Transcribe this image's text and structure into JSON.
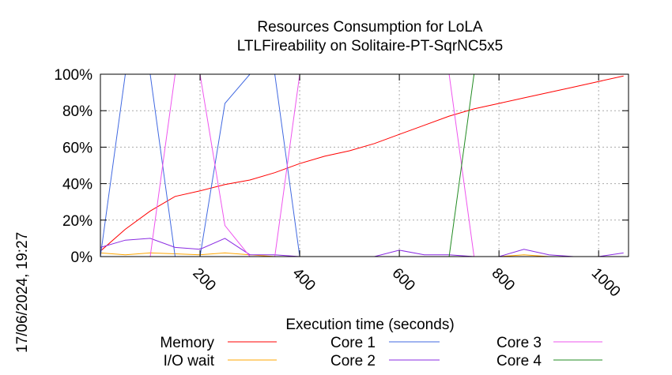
{
  "chart_data": {
    "type": "line",
    "title": "Resources Consumption for LoLA",
    "subtitle": "LTLFireability on Solitaire-PT-SqrNC5x5",
    "xlabel": "Execution time (seconds)",
    "ylabel": "",
    "side_label": "17/06/2024, 19:27",
    "xlim": [
      0,
      1060
    ],
    "ylim": [
      0,
      100
    ],
    "x_ticks": [
      200,
      400,
      600,
      800,
      1000
    ],
    "y_ticks": [
      0,
      20,
      40,
      60,
      80,
      100
    ],
    "y_tick_labels": [
      "0%",
      "20%",
      "40%",
      "60%",
      "80%",
      "100%"
    ],
    "grid": true,
    "legend_position": "bottom",
    "series": [
      {
        "name": "Memory",
        "color": "#ff0000",
        "points": [
          [
            0,
            3
          ],
          [
            50,
            15
          ],
          [
            100,
            25
          ],
          [
            150,
            33
          ],
          [
            200,
            36
          ],
          [
            250,
            39.5
          ],
          [
            300,
            42
          ],
          [
            350,
            46
          ],
          [
            400,
            51
          ],
          [
            450,
            55
          ],
          [
            500,
            58
          ],
          [
            550,
            62
          ],
          [
            600,
            67
          ],
          [
            650,
            72
          ],
          [
            700,
            77
          ],
          [
            750,
            81
          ],
          [
            800,
            84
          ],
          [
            850,
            87
          ],
          [
            900,
            90
          ],
          [
            950,
            93
          ],
          [
            1000,
            96
          ],
          [
            1050,
            99
          ]
        ]
      },
      {
        "name": "I/O wait",
        "color": "#ffa500",
        "points": [
          [
            0,
            2
          ],
          [
            50,
            1
          ],
          [
            100,
            2
          ],
          [
            150,
            1.5
          ],
          [
            200,
            1
          ],
          [
            250,
            2
          ],
          [
            300,
            1
          ],
          [
            350,
            0
          ],
          [
            400,
            0
          ],
          [
            450,
            0
          ],
          [
            500,
            0
          ],
          [
            550,
            0
          ],
          [
            600,
            0
          ],
          [
            650,
            0
          ],
          [
            700,
            0
          ],
          [
            750,
            0
          ],
          [
            800,
            0
          ],
          [
            850,
            1
          ],
          [
            900,
            0
          ],
          [
            950,
            0
          ],
          [
            1000,
            0
          ],
          [
            1050,
            0
          ]
        ]
      },
      {
        "name": "Core 1",
        "color": "#4169e1",
        "points": [
          [
            0,
            0
          ],
          [
            50,
            100
          ],
          [
            100,
            100
          ],
          [
            150,
            0
          ],
          [
            200,
            0
          ],
          [
            250,
            84
          ],
          [
            300,
            100
          ],
          [
            350,
            100
          ],
          [
            400,
            0
          ],
          [
            450,
            0
          ],
          [
            500,
            0
          ],
          [
            550,
            0
          ],
          [
            600,
            0
          ],
          [
            650,
            0
          ],
          [
            700,
            0
          ],
          [
            750,
            0
          ],
          [
            800,
            0
          ],
          [
            850,
            0
          ],
          [
            900,
            0
          ],
          [
            950,
            0
          ],
          [
            1000,
            0
          ],
          [
            1050,
            0
          ]
        ]
      },
      {
        "name": "Core 2",
        "color": "#8a2be2",
        "points": [
          [
            0,
            5
          ],
          [
            50,
            9
          ],
          [
            100,
            10
          ],
          [
            150,
            5
          ],
          [
            200,
            4
          ],
          [
            250,
            10
          ],
          [
            300,
            1
          ],
          [
            350,
            1
          ],
          [
            400,
            0
          ],
          [
            450,
            0
          ],
          [
            500,
            0
          ],
          [
            550,
            0
          ],
          [
            600,
            3.5
          ],
          [
            650,
            1
          ],
          [
            700,
            1
          ],
          [
            750,
            0
          ],
          [
            800,
            0
          ],
          [
            850,
            4
          ],
          [
            900,
            1
          ],
          [
            950,
            0
          ],
          [
            1000,
            0
          ],
          [
            1050,
            2
          ]
        ]
      },
      {
        "name": "Core 3",
        "color": "#ee55ee",
        "points": [
          [
            0,
            0
          ],
          [
            50,
            0
          ],
          [
            100,
            0
          ],
          [
            150,
            100
          ],
          [
            200,
            100
          ],
          [
            250,
            17
          ],
          [
            300,
            0
          ],
          [
            350,
            0
          ],
          [
            400,
            100
          ],
          [
            450,
            100
          ],
          [
            500,
            100
          ],
          [
            550,
            100
          ],
          [
            600,
            100
          ],
          [
            650,
            100
          ],
          [
            700,
            100
          ],
          [
            750,
            0
          ],
          [
            800,
            0
          ],
          [
            850,
            0
          ],
          [
            900,
            0
          ],
          [
            950,
            0
          ],
          [
            1000,
            0
          ],
          [
            1050,
            0
          ]
        ]
      },
      {
        "name": "Core 4",
        "color": "#228b22",
        "points": [
          [
            0,
            0
          ],
          [
            50,
            0
          ],
          [
            100,
            0
          ],
          [
            150,
            0
          ],
          [
            200,
            0
          ],
          [
            250,
            0
          ],
          [
            300,
            0
          ],
          [
            350,
            0
          ],
          [
            400,
            0
          ],
          [
            450,
            0
          ],
          [
            500,
            0
          ],
          [
            550,
            0
          ],
          [
            600,
            0
          ],
          [
            650,
            0
          ],
          [
            700,
            0
          ],
          [
            750,
            100
          ],
          [
            800,
            100
          ],
          [
            850,
            100
          ],
          [
            900,
            100
          ],
          [
            950,
            100
          ],
          [
            1000,
            100
          ],
          [
            1050,
            100
          ]
        ]
      }
    ]
  }
}
